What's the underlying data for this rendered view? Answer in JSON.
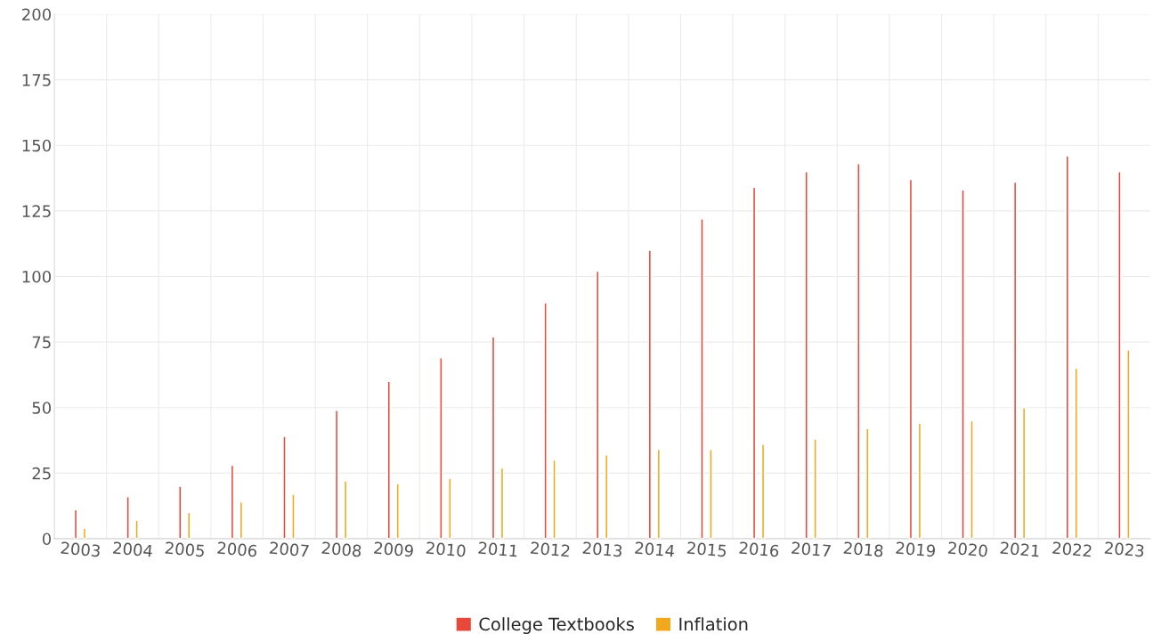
{
  "chart_data": {
    "type": "bar",
    "categories": [
      "2003",
      "2004",
      "2005",
      "2006",
      "2007",
      "2008",
      "2009",
      "2010",
      "2011",
      "2012",
      "2013",
      "2014",
      "2015",
      "2016",
      "2017",
      "2018",
      "2019",
      "2020",
      "2021",
      "2022",
      "2023"
    ],
    "series": [
      {
        "name": "College Textbooks",
        "color": "#e8483a",
        "values": [
          11,
          16,
          20,
          28,
          39,
          49,
          60,
          69,
          77,
          90,
          102,
          110,
          122,
          134,
          140,
          143,
          137,
          133,
          136,
          146,
          140
        ]
      },
      {
        "name": "Inflation",
        "color": "#f2a81d",
        "values": [
          4,
          7,
          10,
          14,
          17,
          22,
          21,
          23,
          27,
          30,
          32,
          34,
          34,
          36,
          38,
          42,
          44,
          45,
          50,
          65,
          72
        ]
      }
    ],
    "ylim": [
      0,
      200
    ],
    "yticks": [
      0,
      25,
      50,
      75,
      100,
      125,
      150,
      175,
      200
    ],
    "grid": true,
    "legend": "bottom"
  }
}
